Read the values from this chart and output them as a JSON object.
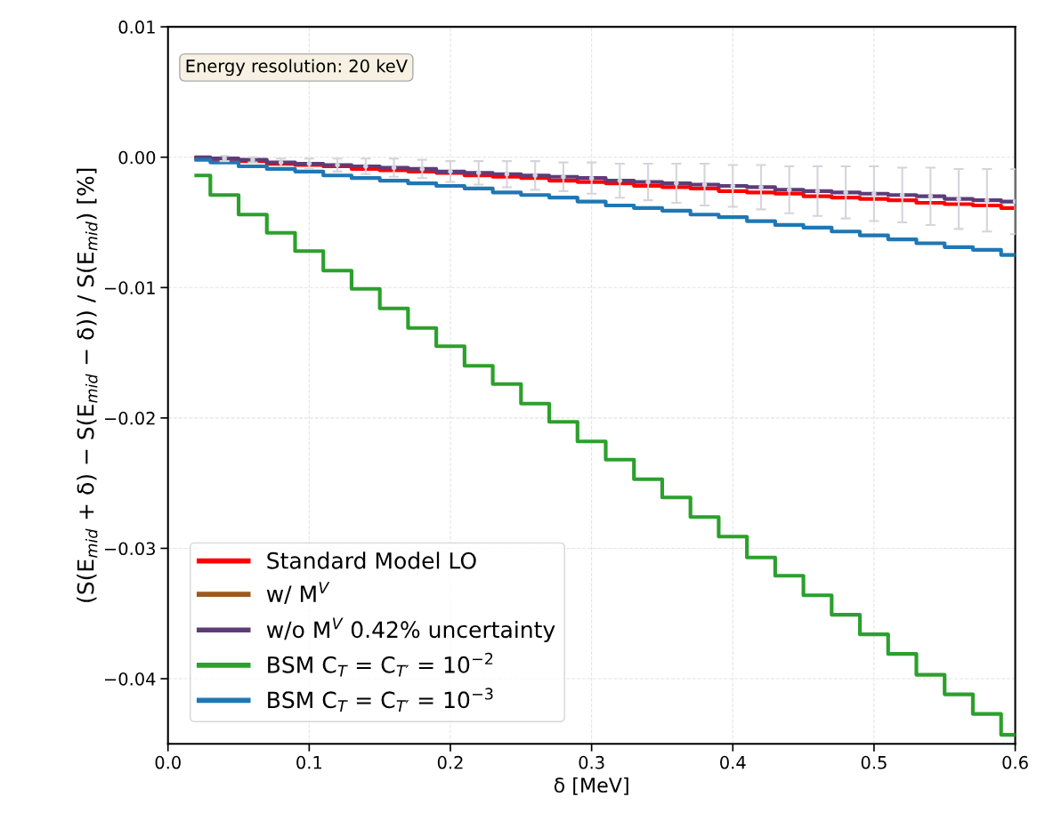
{
  "chart_data": {
    "type": "step",
    "xlabel": "δ [MeV]",
    "ylabel": "(S(E$_{mid}$ + δ) − S(E$_{mid}$ − δ)) / S(E$_{mid}$) [%]",
    "x": [
      0.02,
      0.03,
      0.05,
      0.07,
      0.09,
      0.11,
      0.13,
      0.15,
      0.17,
      0.19,
      0.21,
      0.23,
      0.25,
      0.27,
      0.29,
      0.31,
      0.33,
      0.35,
      0.37,
      0.39,
      0.41,
      0.43,
      0.45,
      0.47,
      0.49,
      0.51,
      0.53,
      0.55,
      0.57,
      0.59,
      0.6
    ],
    "series": [
      {
        "name": "Standard Model LO",
        "color": "#ff0000",
        "values": [
          -0.0001,
          -0.0002,
          -0.0003,
          -0.0005,
          -0.0006,
          -0.0007,
          -0.0009,
          -0.001,
          -0.0011,
          -0.0012,
          -0.0014,
          -0.0015,
          -0.0016,
          -0.0018,
          -0.0019,
          -0.002,
          -0.0022,
          -0.0023,
          -0.0024,
          -0.0026,
          -0.0027,
          -0.0028,
          -0.003,
          -0.0031,
          -0.0032,
          -0.0033,
          -0.0035,
          -0.0036,
          -0.0037,
          -0.0039,
          -0.0039
        ]
      },
      {
        "name": "w/ M$^{V}$",
        "color": "#9c5a1c",
        "values": [
          null,
          null,
          null,
          null,
          null,
          null,
          null,
          null,
          null,
          null,
          null,
          null,
          null,
          null,
          null,
          null,
          null,
          null,
          null,
          null,
          null,
          null,
          null,
          null,
          null,
          null,
          null,
          null,
          null,
          null,
          null
        ]
      },
      {
        "name": "w/o M$^{V}$ 0.42% uncertainty",
        "color": "#5e3c78",
        "values": [
          0.0,
          -0.0001,
          -0.0002,
          -0.0004,
          -0.0005,
          -0.0006,
          -0.0007,
          -0.0008,
          -0.0009,
          -0.0011,
          -0.0012,
          -0.0013,
          -0.0014,
          -0.0015,
          -0.0016,
          -0.0018,
          -0.0019,
          -0.002,
          -0.0021,
          -0.0022,
          -0.0023,
          -0.0025,
          -0.0026,
          -0.0027,
          -0.0028,
          -0.0029,
          -0.003,
          -0.0032,
          -0.0033,
          -0.0034,
          -0.0034
        ]
      },
      {
        "name": "BSM C$_{T}$ = C$_{T′}$ = 10$^{−2}$",
        "color": "#2ca02c",
        "values": [
          -0.0014,
          -0.0029,
          -0.0044,
          -0.0058,
          -0.0072,
          -0.0087,
          -0.0101,
          -0.0116,
          -0.0131,
          -0.0145,
          -0.016,
          -0.0174,
          -0.0189,
          -0.0203,
          -0.0218,
          -0.0232,
          -0.0247,
          -0.0261,
          -0.0276,
          -0.0291,
          -0.0307,
          -0.0321,
          -0.0336,
          -0.0351,
          -0.0366,
          -0.0381,
          -0.0397,
          -0.0412,
          -0.0427,
          -0.0443,
          -0.0443
        ]
      },
      {
        "name": "BSM C$_{T}$ = C$_{T′}$ = 10$^{−3}$",
        "color": "#1f77b4",
        "values": [
          -0.0002,
          -0.0004,
          -0.0007,
          -0.0009,
          -0.0011,
          -0.0014,
          -0.0016,
          -0.0018,
          -0.002,
          -0.0022,
          -0.0024,
          -0.0027,
          -0.0029,
          -0.0031,
          -0.0034,
          -0.0037,
          -0.0039,
          -0.0041,
          -0.0044,
          -0.0046,
          -0.0049,
          -0.0052,
          -0.0054,
          -0.0057,
          -0.006,
          -0.0063,
          -0.0066,
          -0.0069,
          -0.0071,
          -0.0075,
          -0.0075
        ]
      },
      {
        "type": "scatter",
        "marker": "circle",
        "color": "#d4d4dc",
        "x": [
          0.04,
          0.06,
          0.08,
          0.1,
          0.12,
          0.14,
          0.16,
          0.18,
          0.2,
          0.22,
          0.24,
          0.26,
          0.28,
          0.3,
          0.32,
          0.34,
          0.36,
          0.38,
          0.4,
          0.42,
          0.44,
          0.46,
          0.48,
          0.5,
          0.52,
          0.54,
          0.56,
          0.58,
          0.6
        ],
        "values": [
          -0.0001,
          -0.0002,
          -0.0004,
          -0.0005,
          -0.0006,
          -0.0007,
          -0.0008,
          -0.0009,
          -0.0011,
          -0.0012,
          -0.0013,
          -0.0014,
          -0.0015,
          -0.0016,
          -0.0018,
          -0.0019,
          -0.002,
          -0.0021,
          -0.0022,
          -0.0023,
          -0.0025,
          -0.0026,
          -0.0027,
          -0.0028,
          -0.0029,
          -0.003,
          -0.0032,
          -0.0033,
          -0.0034
        ],
        "errors": [
          0.0002,
          0.0002,
          0.0003,
          0.0004,
          0.0005,
          0.0006,
          0.0007,
          0.0007,
          0.0008,
          0.0009,
          0.001,
          0.0011,
          0.0011,
          0.0012,
          0.0013,
          0.0014,
          0.0015,
          0.0016,
          0.0016,
          0.0017,
          0.0018,
          0.0019,
          0.002,
          0.0021,
          0.0021,
          0.0022,
          0.0023,
          0.0024,
          0.0025
        ]
      }
    ],
    "xlim": [
      0.0,
      0.6
    ],
    "xticks": [
      {
        "value": 0.0,
        "label": "0.0"
      },
      0.1,
      0.2,
      0.3,
      0.4,
      0.5,
      0.6
    ],
    "ylim": [
      -0.045,
      0.01
    ],
    "yticks": [
      {
        "value": -0.04,
        "label": "−0.04"
      },
      {
        "value": -0.03,
        "label": "−0.03"
      },
      {
        "value": -0.02,
        "label": "−0.02"
      },
      {
        "value": -0.01,
        "label": "−0.01"
      },
      {
        "value": 0.0,
        "label": "0.00"
      },
      0.01
    ],
    "annotations": [
      "Energy resolution: 20 keV"
    ],
    "grid": true,
    "legend": "bottom left",
    "line_style": "solid"
  }
}
